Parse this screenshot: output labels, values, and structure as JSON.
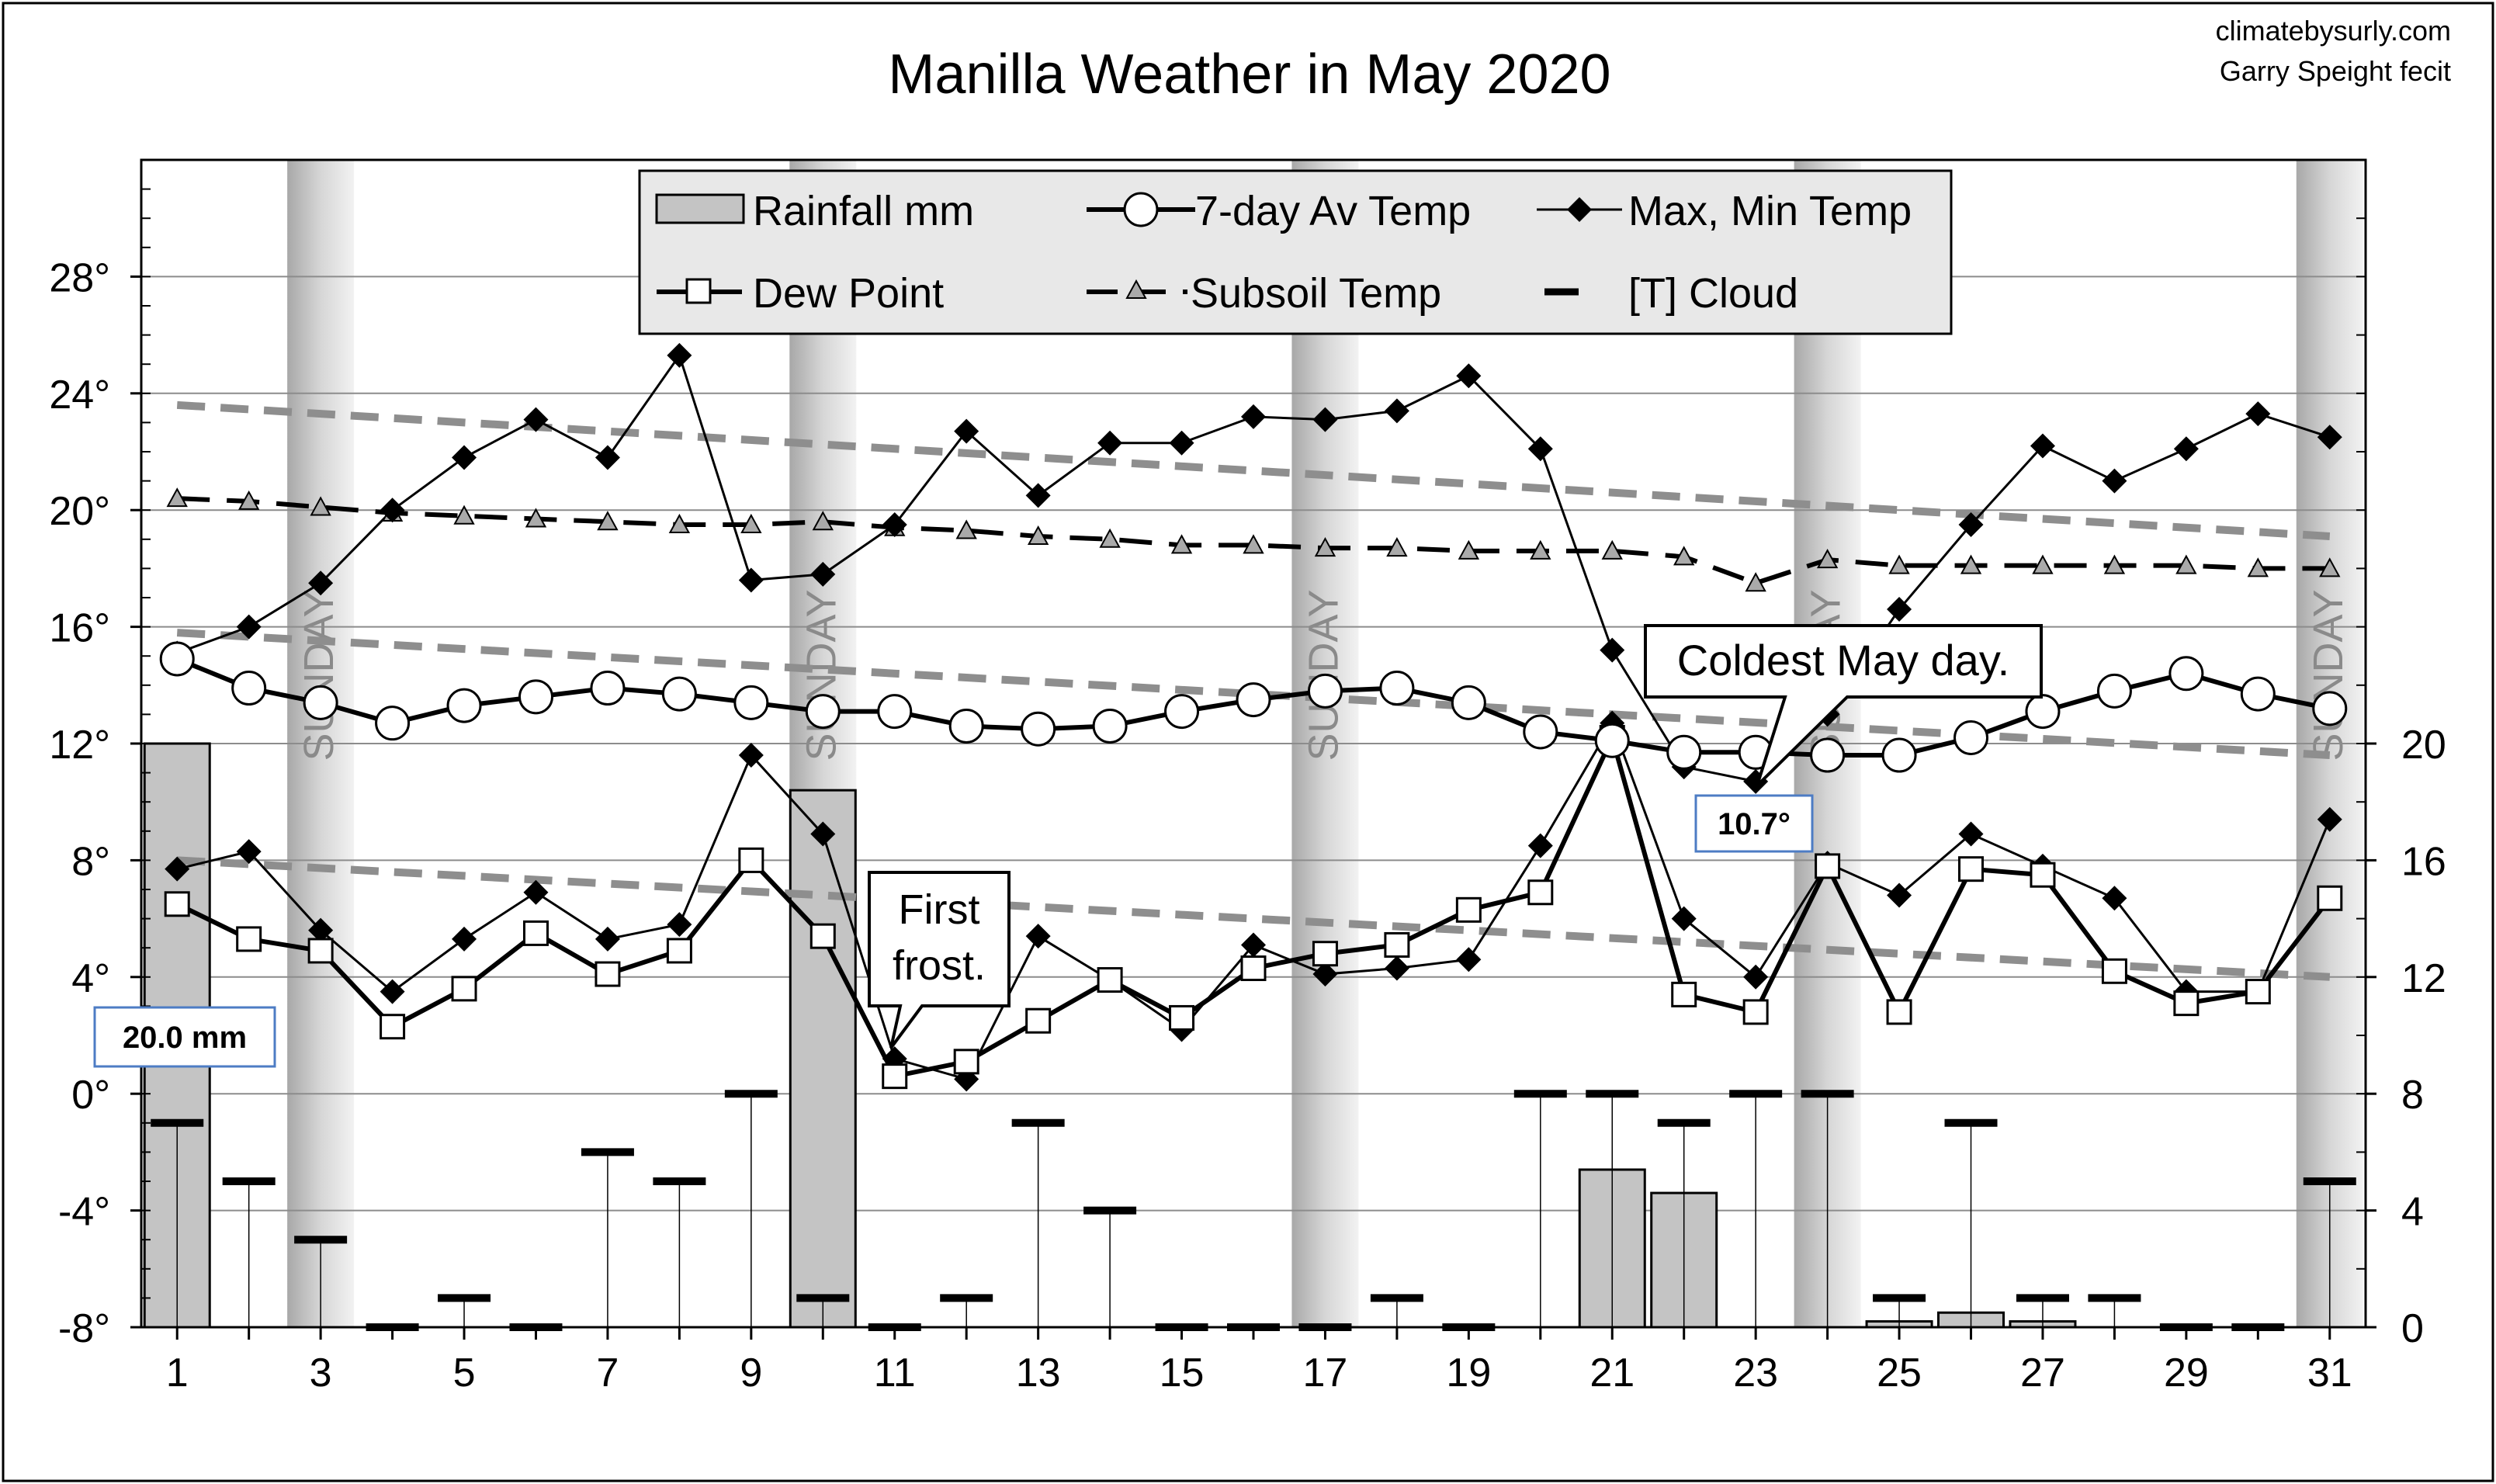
{
  "credits": {
    "line1": "climatebysurly.com",
    "line2": "Garry Speight fecit"
  },
  "chart_data": {
    "type": "line",
    "title": "Manilla Weather in May 2020",
    "x_ticks": [
      "1",
      "3",
      "5",
      "7",
      "9",
      "11",
      "13",
      "15",
      "17",
      "19",
      "21",
      "23",
      "25",
      "27",
      "29",
      "31"
    ],
    "xlim": [
      0.5,
      31.5
    ],
    "y_left": {
      "ticks": [
        "28°",
        "24°",
        "20°",
        "16°",
        "12°",
        "8°",
        "4°",
        "0°",
        "-4°",
        "-8°"
      ],
      "tick_values": [
        28,
        24,
        20,
        16,
        12,
        8,
        4,
        0,
        -4,
        -8
      ],
      "range": [
        -8,
        32
      ]
    },
    "y_right": {
      "ticks": [
        "20",
        "16",
        "12",
        "8",
        "4",
        "0"
      ],
      "tick_values": [
        20,
        16,
        12,
        8,
        4,
        0
      ],
      "range": [
        0,
        40
      ]
    },
    "sundays": [
      3,
      10,
      17,
      24,
      31
    ],
    "sunday_label": "SUNDAY",
    "legend": {
      "rainfall": "Rainfall mm",
      "avg": "7-day Av Temp",
      "maxmin": "Max, Min Temp",
      "dew": "Dew Point",
      "subsoil": "Subsoil Temp",
      "cloud": "[T] Cloud"
    },
    "series": [
      {
        "name": "Max Temp",
        "unit": "°C",
        "values": [
          15.1,
          16.0,
          17.5,
          20.0,
          21.8,
          23.1,
          21.8,
          25.3,
          17.6,
          17.8,
          19.5,
          22.7,
          20.5,
          22.3,
          22.3,
          23.2,
          23.1,
          23.4,
          24.6,
          22.1,
          15.2,
          11.2,
          10.7,
          13.0,
          16.6,
          19.5,
          22.2,
          21.0,
          22.1,
          23.3,
          22.5
        ]
      },
      {
        "name": "Min Temp",
        "unit": "°C",
        "values": [
          7.7,
          8.3,
          5.6,
          3.5,
          5.3,
          6.9,
          5.3,
          5.8,
          11.6,
          8.9,
          1.2,
          0.5,
          5.4,
          3.9,
          2.2,
          5.1,
          4.1,
          4.3,
          4.6,
          8.5,
          12.7,
          6.0,
          4.0,
          7.9,
          6.8,
          8.9,
          7.8,
          6.7,
          3.5,
          3.5,
          9.4
        ]
      },
      {
        "name": "7-day Av Temp",
        "unit": "°C",
        "values": [
          14.9,
          13.9,
          13.4,
          12.7,
          13.3,
          13.6,
          13.9,
          13.7,
          13.4,
          13.1,
          13.1,
          12.6,
          12.5,
          12.6,
          13.1,
          13.5,
          13.8,
          13.9,
          13.4,
          12.4,
          12.1,
          11.7,
          11.7,
          11.6,
          11.6,
          12.2,
          13.1,
          13.8,
          14.4,
          13.7,
          13.2
        ]
      },
      {
        "name": "Dew Point",
        "unit": "°C",
        "values": [
          6.5,
          5.3,
          4.9,
          2.3,
          3.6,
          5.5,
          4.1,
          4.9,
          8.0,
          5.4,
          0.6,
          1.1,
          2.5,
          3.9,
          2.6,
          4.3,
          4.8,
          5.1,
          6.3,
          6.9,
          12.2,
          3.4,
          2.8,
          7.8,
          2.8,
          7.7,
          7.5,
          4.2,
          3.1,
          3.5,
          6.7
        ]
      },
      {
        "name": "Subsoil Temp",
        "unit": "°C",
        "values": [
          20.4,
          20.3,
          20.1,
          19.9,
          19.8,
          19.7,
          19.6,
          19.5,
          19.5,
          19.6,
          19.4,
          19.3,
          19.1,
          19.0,
          18.8,
          18.8,
          18.7,
          18.7,
          18.6,
          18.6,
          18.6,
          18.4,
          17.5,
          18.3,
          18.1,
          18.1,
          18.1,
          18.1,
          18.1,
          18.0,
          18.0
        ]
      },
      {
        "name": "Rainfall mm",
        "unit": "mm",
        "axis": "right",
        "values": [
          20.0,
          0,
          0,
          0,
          0,
          0,
          0,
          0,
          0,
          18.4,
          0,
          0,
          0,
          0,
          0,
          0,
          0,
          0,
          0,
          0,
          5.4,
          4.6,
          0,
          0,
          0.2,
          0.5,
          0.2,
          0,
          0,
          0,
          0
        ]
      },
      {
        "name": "[T] Cloud",
        "unit": "oktas",
        "axis": "right",
        "values": [
          7,
          5,
          3,
          0,
          1,
          0,
          6,
          5,
          8,
          1,
          0,
          1,
          7,
          4,
          0,
          0,
          0,
          1,
          0,
          8,
          8,
          7,
          8,
          8,
          1,
          7,
          1,
          1,
          0,
          0,
          5
        ]
      }
    ],
    "trend_lines": [
      {
        "name": "Max trend",
        "from": [
          1,
          23.6
        ],
        "to": [
          31,
          19.1
        ]
      },
      {
        "name": "Avg trend",
        "from": [
          1,
          15.8
        ],
        "to": [
          31,
          11.6
        ]
      },
      {
        "name": "Min trend",
        "from": [
          1,
          8.0
        ],
        "to": [
          31,
          4.0
        ]
      }
    ],
    "annotations": {
      "rain_label": {
        "text": "20.0 mm",
        "x": 1
      },
      "min_label": {
        "text": "10.7°",
        "x": 23
      },
      "frost_line1": "First",
      "frost_line2": "frost.",
      "frost_day": 11,
      "coldest": "Coldest May day.",
      "coldest_day": 23
    }
  }
}
